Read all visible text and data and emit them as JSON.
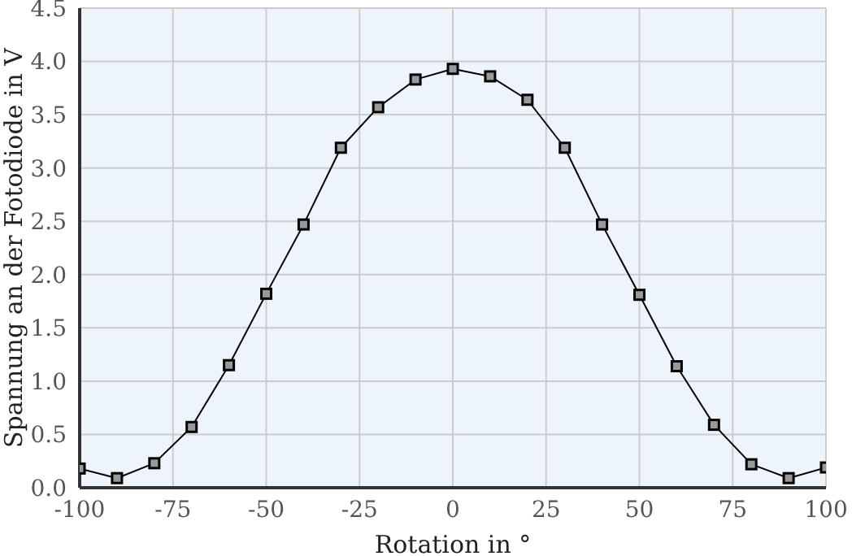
{
  "chart_data": {
    "type": "line",
    "xlabel": "Rotation in °",
    "ylabel": "Spannung an der Fotodiode in V",
    "x": [
      -100,
      -90,
      -80,
      -70,
      -60,
      -50,
      -40,
      -30,
      -20,
      -10,
      0,
      10,
      20,
      30,
      40,
      50,
      60,
      70,
      80,
      90,
      100
    ],
    "series": [
      {
        "color": "#000000",
        "values": [
          0.18,
          0.09,
          0.23,
          0.57,
          1.15,
          1.82,
          2.47,
          3.19,
          3.57,
          3.83,
          3.93,
          3.86,
          3.64,
          3.19,
          2.47,
          1.81,
          1.14,
          0.59,
          0.22,
          0.09,
          0.19
        ]
      }
    ],
    "xlim": [
      -100,
      100
    ],
    "xticks": [
      -100,
      -75,
      -50,
      -25,
      0,
      25,
      50,
      75,
      100
    ],
    "ylim": [
      0,
      4.5
    ],
    "yticks": [
      {
        "value": 0,
        "label": "0.0"
      },
      0.5,
      {
        "value": 1,
        "label": "1.0"
      },
      1.5,
      {
        "value": 2,
        "label": "2.0"
      },
      2.5,
      {
        "value": 3,
        "label": "3.0"
      },
      3.5,
      {
        "value": 4,
        "label": "4.0"
      },
      4.5
    ],
    "grid": true,
    "marker": "square",
    "line_style": "solid"
  }
}
